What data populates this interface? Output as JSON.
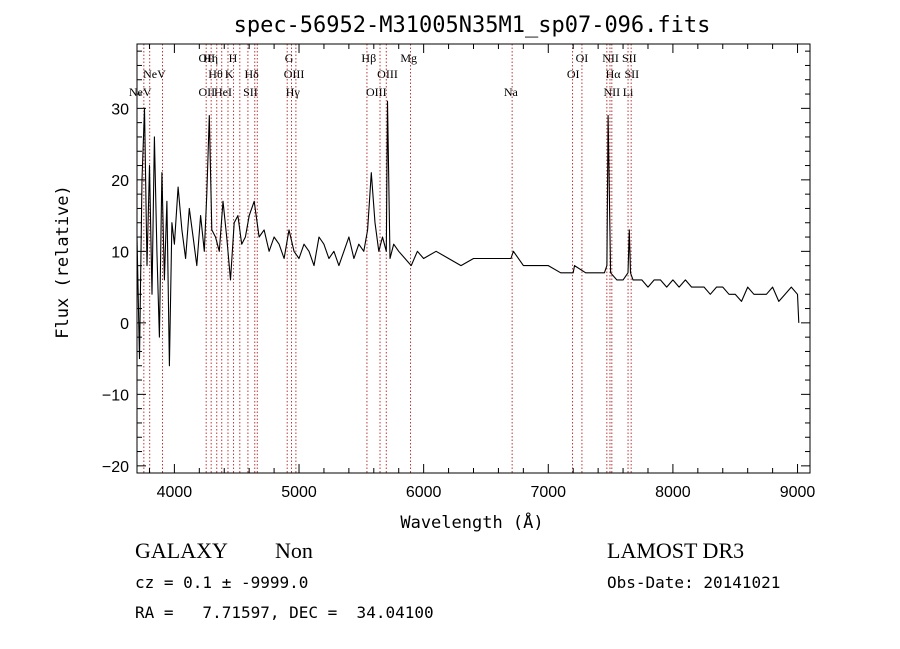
{
  "chart_data": {
    "type": "line",
    "title": "spec-56952-M31005N35M1_sp07-096.fits",
    "xlabel": "Wavelength (Å)",
    "ylabel": "Flux (relative)",
    "xlim": [
      3700,
      9100
    ],
    "ylim": [
      -21,
      39
    ],
    "xticks": [
      4000,
      5000,
      6000,
      7000,
      8000,
      9000
    ],
    "xtick_labels": [
      "4000",
      "5000",
      "6000",
      "7000",
      "8000",
      "9000"
    ],
    "yticks": [
      -20,
      -10,
      0,
      10,
      20,
      30
    ],
    "ytick_labels": [
      "−20",
      "−10",
      "0",
      "10",
      "20",
      "30"
    ],
    "grid": false,
    "line_color": "#000000",
    "marker_color": "#b22222",
    "spectrum_x": [
      3700,
      3720,
      3740,
      3760,
      3780,
      3800,
      3820,
      3840,
      3860,
      3880,
      3900,
      3920,
      3940,
      3960,
      3980,
      4000,
      4030,
      4060,
      4090,
      4120,
      4150,
      4180,
      4210,
      4240,
      4260,
      4280,
      4300,
      4330,
      4360,
      4390,
      4420,
      4450,
      4480,
      4510,
      4540,
      4570,
      4600,
      4640,
      4680,
      4720,
      4760,
      4800,
      4840,
      4880,
      4920,
      4960,
      5000,
      5040,
      5080,
      5120,
      5160,
      5200,
      5240,
      5280,
      5320,
      5360,
      5400,
      5440,
      5480,
      5520,
      5550,
      5580,
      5610,
      5640,
      5670,
      5700,
      5710,
      5730,
      5760,
      5800,
      5850,
      5900,
      5950,
      6000,
      6100,
      6200,
      6300,
      6400,
      6500,
      6600,
      6700,
      6720,
      6800,
      6900,
      7000,
      7100,
      7200,
      7210,
      7300,
      7400,
      7450,
      7470,
      7480,
      7500,
      7550,
      7600,
      7640,
      7650,
      7660,
      7680,
      7700,
      7750,
      7800,
      7850,
      7900,
      7950,
      8000,
      8050,
      8100,
      8150,
      8200,
      8250,
      8300,
      8350,
      8400,
      8450,
      8500,
      8550,
      8600,
      8650,
      8700,
      8750,
      8800,
      8850,
      8900,
      8950,
      9000,
      9010
    ],
    "spectrum_y": [
      12,
      -5,
      20,
      30,
      8,
      22,
      4,
      26,
      10,
      -2,
      21,
      6,
      17,
      -6,
      14,
      11,
      19,
      13,
      9,
      16,
      12,
      8,
      15,
      10,
      18,
      29,
      13,
      12,
      10,
      17,
      12,
      6,
      14,
      15,
      11,
      12,
      15,
      17,
      12,
      13,
      10,
      12,
      11,
      9,
      13,
      10,
      9,
      11,
      10,
      8,
      12,
      11,
      9,
      10,
      8,
      10,
      12,
      9,
      11,
      10,
      13,
      21,
      14,
      10,
      12,
      10,
      31,
      9,
      11,
      10,
      9,
      8,
      10,
      9,
      10,
      9,
      8,
      9,
      9,
      9,
      9,
      10,
      8,
      8,
      8,
      7,
      7,
      8,
      7,
      7,
      7,
      8,
      29,
      7,
      6,
      6,
      7,
      13,
      7,
      6,
      6,
      6,
      5,
      6,
      6,
      5,
      6,
      5,
      6,
      5,
      5,
      5,
      4,
      5,
      5,
      4,
      4,
      3,
      5,
      4,
      4,
      4,
      5,
      3,
      4,
      5,
      4,
      0
    ],
    "lines": [
      {
        "label": "NeV",
        "wl": 3726,
        "row": 3
      },
      {
        "label": "NeV",
        "wl": 3840,
        "row": 2
      },
      {
        "label": "OII",
        "wl": 4260,
        "row": 1
      },
      {
        "label": "OII",
        "wl": 4260,
        "row": 3
      },
      {
        "label": "Hη",
        "wl": 4290,
        "row": 1
      },
      {
        "label": "Hθ",
        "wl": 4330,
        "row": 2
      },
      {
        "label": "HeI",
        "wl": 4390,
        "row": 3
      },
      {
        "label": "H",
        "wl": 4470,
        "row": 1
      },
      {
        "label": "K",
        "wl": 4440,
        "row": 2
      },
      {
        "label": "Hδ",
        "wl": 4620,
        "row": 2
      },
      {
        "label": "SII",
        "wl": 4610,
        "row": 3
      },
      {
        "label": "G",
        "wl": 4920,
        "row": 1
      },
      {
        "label": "OIII",
        "wl": 4960,
        "row": 2
      },
      {
        "label": "Hγ",
        "wl": 4950,
        "row": 3
      },
      {
        "label": "Hβ",
        "wl": 5560,
        "row": 1
      },
      {
        "label": "OIII",
        "wl": 5710,
        "row": 2
      },
      {
        "label": "OIII",
        "wl": 5620,
        "row": 3
      },
      {
        "label": "Mg",
        "wl": 5880,
        "row": 1
      },
      {
        "label": "Na",
        "wl": 6700,
        "row": 3
      },
      {
        "label": "OI",
        "wl": 7270,
        "row": 1
      },
      {
        "label": "OI",
        "wl": 7200,
        "row": 2
      },
      {
        "label": "NII",
        "wl": 7500,
        "row": 1
      },
      {
        "label": "SII",
        "wl": 7650,
        "row": 1
      },
      {
        "label": "Hα",
        "wl": 7520,
        "row": 2
      },
      {
        "label": "SII",
        "wl": 7670,
        "row": 2
      },
      {
        "label": "NII",
        "wl": 7510,
        "row": 3
      },
      {
        "label": "Li",
        "wl": 7640,
        "row": 3
      }
    ],
    "marker_wl": [
      3755,
      3802,
      3905,
      4255,
      4295,
      4340,
      4380,
      4430,
      4475,
      4525,
      4590,
      4645,
      4665,
      4905,
      4940,
      4975,
      5545,
      5650,
      5700,
      5895,
      6710,
      7195,
      7270,
      7470,
      7495,
      7510,
      7640,
      7665
    ]
  },
  "info": {
    "object_class": "GALAXY",
    "subclass": "Non",
    "survey": "LAMOST DR3",
    "cz_text": "cz = 0.1 ± -9999.0",
    "obs_date": "Obs-Date: 20141021",
    "coords_text": "RA =   7.71597, DEC =  34.04100"
  }
}
